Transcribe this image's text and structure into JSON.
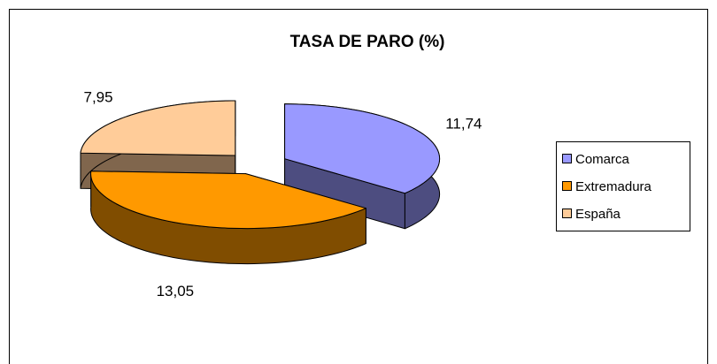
{
  "chart_data": {
    "type": "pie",
    "title": "TASA DE PARO (%)",
    "categories": [
      "Comarca",
      "Extremadura",
      "España"
    ],
    "values": [
      11.74,
      13.05,
      7.95
    ],
    "value_labels": [
      "11,74",
      "13,05",
      "7,95"
    ],
    "colors": [
      "#9999ff",
      "#ff9900",
      "#ffcc99"
    ],
    "legend": "right"
  }
}
